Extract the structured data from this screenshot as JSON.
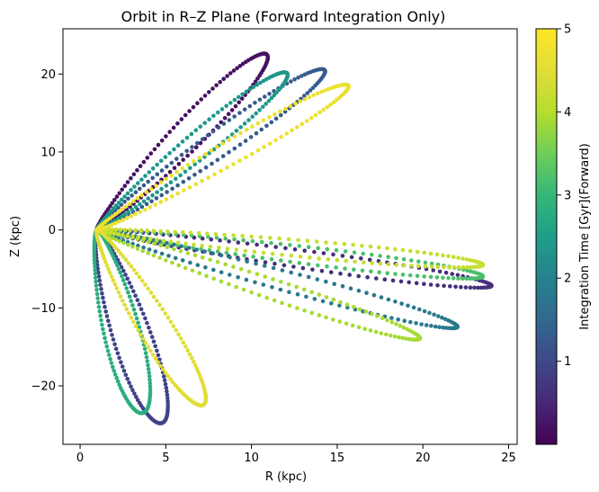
{
  "chart_data": {
    "type": "scatter",
    "title": "Orbit in R–Z Plane (Forward Integration Only)",
    "xlabel": "R (kpc)",
    "ylabel": "Z (kpc)",
    "xlim": [
      -1.0,
      25.5
    ],
    "ylim": [
      -27.5,
      25.8
    ],
    "xticks": [
      0,
      5,
      10,
      15,
      20,
      25
    ],
    "yticks": [
      -20,
      -10,
      0,
      10,
      20
    ],
    "grid": false,
    "colorbar": {
      "label": "Integration Time [Gyr](Forward)",
      "colormap": "viridis",
      "range": [
        0,
        5
      ],
      "ticks": [
        1,
        2,
        3,
        4,
        5
      ]
    },
    "orbit_lobes": [
      {
        "t": 0.2,
        "apex": [
          10.8,
          22.6
        ]
      },
      {
        "t": 0.6,
        "apex": [
          24.0,
          -7.2
        ]
      },
      {
        "t": 0.9,
        "apex": [
          4.7,
          -24.8
        ]
      },
      {
        "t": 1.3,
        "apex": [
          14.2,
          20.6
        ]
      },
      {
        "t": 1.8,
        "apex": [
          22.0,
          -12.5
        ]
      },
      {
        "t": 2.4,
        "apex": [
          12.0,
          20.2
        ]
      },
      {
        "t": 2.8,
        "apex": [
          3.6,
          -23.5
        ]
      },
      {
        "t": 3.2,
        "apex": [
          23.5,
          -6.0
        ]
      },
      {
        "t": 3.9,
        "apex": [
          19.8,
          -14.0
        ]
      },
      {
        "t": 4.2,
        "apex": [
          23.5,
          -4.5
        ]
      },
      {
        "t": 4.5,
        "apex": [
          7.1,
          -22.5
        ]
      },
      {
        "t": 4.7,
        "apex": [
          15.6,
          18.6
        ]
      }
    ],
    "center": [
      1.0,
      0.0
    ]
  }
}
